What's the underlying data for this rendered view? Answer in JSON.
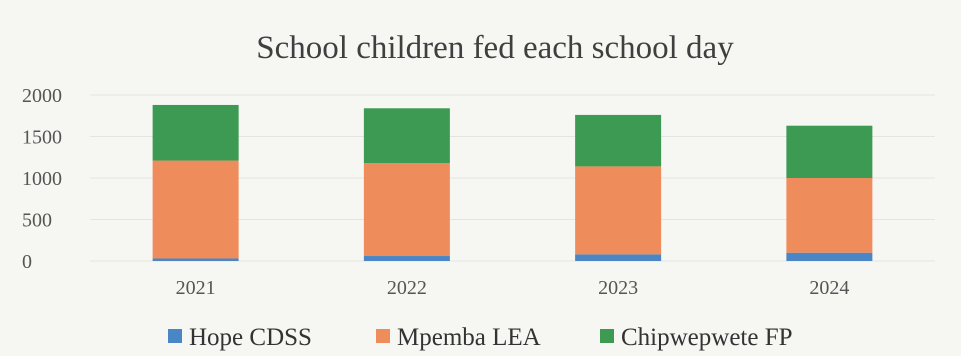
{
  "chart_data": {
    "type": "bar",
    "stacked": true,
    "title": "School children fed each school day",
    "xlabel": "",
    "ylabel": "",
    "categories": [
      "2021",
      "2022",
      "2023",
      "2024"
    ],
    "series": [
      {
        "name": "Hope CDSS",
        "color": "#4a86c5",
        "values": [
          30,
          60,
          80,
          100
        ]
      },
      {
        "name": "Mpemba LEA",
        "color": "#ef8c5c",
        "values": [
          1180,
          1120,
          1060,
          900
        ]
      },
      {
        "name": "Chipwepwete FP",
        "color": "#3d9a52",
        "values": [
          670,
          660,
          620,
          630
        ]
      }
    ],
    "yticks": [
      "0",
      "500",
      "1000",
      "1500",
      "2000"
    ],
    "ylim": [
      0,
      2000
    ],
    "grid": true,
    "legend": "bottom"
  }
}
